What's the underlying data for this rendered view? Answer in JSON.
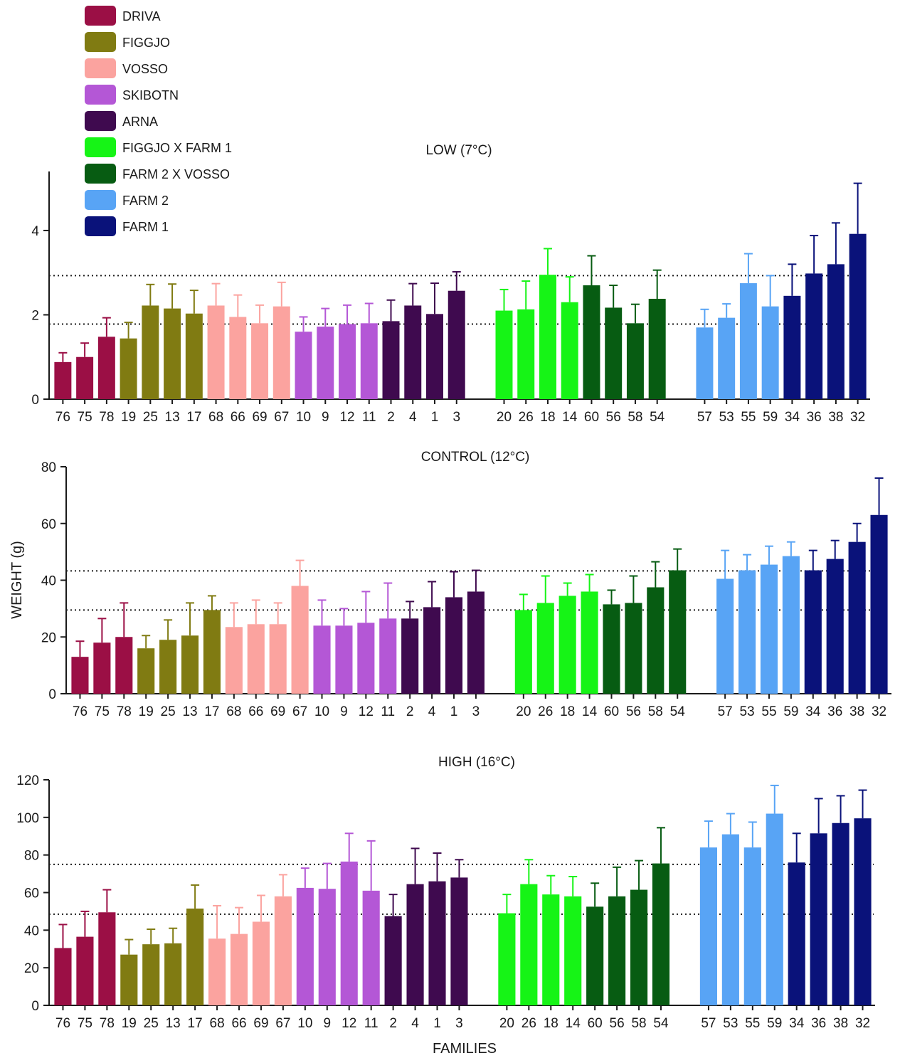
{
  "legend": [
    {
      "key": "driva",
      "label": "DRIVA",
      "color": "#9b0f45"
    },
    {
      "key": "figgjo",
      "label": "FIGGJO",
      "color": "#807b12"
    },
    {
      "key": "vosso",
      "label": "VOSSO",
      "color": "#fba39f"
    },
    {
      "key": "skibotn",
      "label": "SKIBOTN",
      "color": "#b457d6"
    },
    {
      "key": "arna",
      "label": "ARNA",
      "color": "#3f0a4f"
    },
    {
      "key": "figgjo_farm1",
      "label": "FIGGJO X FARM 1",
      "color": "#16f416"
    },
    {
      "key": "farm2_vosso",
      "label": "FARM 2 X VOSSO",
      "color": "#075c12"
    },
    {
      "key": "farm2",
      "label": "FARM 2",
      "color": "#58a4f5"
    },
    {
      "key": "farm1",
      "label": "FARM 1",
      "color": "#0a127a"
    }
  ],
  "y_axis_title": "WEIGHT (g)",
  "x_axis_title": "FAMILIES",
  "chart_data": [
    {
      "type": "bar",
      "title": "LOW (7°C)",
      "ylim": [
        0,
        5.4
      ],
      "yticks": [
        0,
        2,
        4
      ],
      "reference_lines": [
        1.78,
        2.93
      ],
      "categories": [
        "76",
        "75",
        "78",
        "19",
        "25",
        "13",
        "17",
        "68",
        "66",
        "69",
        "67",
        "10",
        "9",
        "12",
        "11",
        "2",
        "4",
        "1",
        "3",
        "20",
        "26",
        "18",
        "14",
        "60",
        "56",
        "58",
        "54",
        "57",
        "53",
        "55",
        "59",
        "34",
        "36",
        "38",
        "32"
      ],
      "groups": [
        "DRIVA",
        "DRIVA",
        "DRIVA",
        "FIGGJO",
        "FIGGJO",
        "FIGGJO",
        "FIGGJO",
        "VOSSO",
        "VOSSO",
        "VOSSO",
        "VOSSO",
        "SKIBOTN",
        "SKIBOTN",
        "SKIBOTN",
        "SKIBOTN",
        "ARNA",
        "ARNA",
        "ARNA",
        "ARNA",
        "FIGGJO X FARM 1",
        "FIGGJO X FARM 1",
        "FIGGJO X FARM 1",
        "FIGGJO X FARM 1",
        "FARM 2 X VOSSO",
        "FARM 2 X VOSSO",
        "FARM 2 X VOSSO",
        "FARM 2 X VOSSO",
        "FARM 2",
        "FARM 2",
        "FARM 2",
        "FARM 2",
        "FARM 1",
        "FARM 1",
        "FARM 1",
        "FARM 1"
      ],
      "values": [
        0.88,
        1.0,
        1.48,
        1.44,
        2.22,
        2.15,
        2.03,
        2.22,
        1.95,
        1.8,
        2.2,
        1.6,
        1.72,
        1.78,
        1.8,
        1.85,
        2.22,
        2.02,
        2.57,
        2.1,
        2.13,
        2.95,
        2.3,
        2.7,
        2.17,
        1.8,
        2.38,
        1.7,
        1.93,
        2.75,
        2.2,
        2.45,
        2.98,
        3.2,
        3.92
      ],
      "errors": [
        0.22,
        0.33,
        0.45,
        0.38,
        0.5,
        0.58,
        0.55,
        0.52,
        0.52,
        0.43,
        0.57,
        0.35,
        0.43,
        0.45,
        0.47,
        0.5,
        0.52,
        0.73,
        0.45,
        0.5,
        0.67,
        0.62,
        0.6,
        0.7,
        0.53,
        0.45,
        0.68,
        0.43,
        0.33,
        0.7,
        0.73,
        0.75,
        0.9,
        0.98,
        1.2
      ]
    },
    {
      "type": "bar",
      "title": "CONTROL (12°C)",
      "ylim": [
        0,
        80
      ],
      "yticks": [
        0,
        20,
        40,
        60,
        80
      ],
      "reference_lines": [
        29.5,
        43.3
      ],
      "categories": [
        "76",
        "75",
        "78",
        "19",
        "25",
        "13",
        "17",
        "68",
        "66",
        "69",
        "67",
        "10",
        "9",
        "12",
        "11",
        "2",
        "4",
        "1",
        "3",
        "20",
        "26",
        "18",
        "14",
        "60",
        "56",
        "58",
        "54",
        "57",
        "53",
        "55",
        "59",
        "34",
        "36",
        "38",
        "32"
      ],
      "groups": [
        "DRIVA",
        "DRIVA",
        "DRIVA",
        "FIGGJO",
        "FIGGJO",
        "FIGGJO",
        "FIGGJO",
        "VOSSO",
        "VOSSO",
        "VOSSO",
        "VOSSO",
        "SKIBOTN",
        "SKIBOTN",
        "SKIBOTN",
        "SKIBOTN",
        "ARNA",
        "ARNA",
        "ARNA",
        "ARNA",
        "FIGGJO X FARM 1",
        "FIGGJO X FARM 1",
        "FIGGJO X FARM 1",
        "FIGGJO X FARM 1",
        "FARM 2 X VOSSO",
        "FARM 2 X VOSSO",
        "FARM 2 X VOSSO",
        "FARM 2 X VOSSO",
        "FARM 2",
        "FARM 2",
        "FARM 2",
        "FARM 2",
        "FARM 1",
        "FARM 1",
        "FARM 1",
        "FARM 1"
      ],
      "values": [
        13,
        18,
        20,
        16,
        19,
        20.5,
        29.5,
        23.5,
        24.5,
        24.5,
        38,
        24,
        24,
        25,
        26.5,
        26.5,
        30.5,
        34,
        36,
        29.5,
        32,
        34.5,
        36,
        31.5,
        32,
        37.5,
        43.5,
        40.5,
        43.5,
        45.5,
        48.5,
        43.5,
        47.5,
        53.5,
        63
      ],
      "errors": [
        5.5,
        8.5,
        12,
        4.5,
        7,
        11.5,
        5,
        8.5,
        8.5,
        7.5,
        9,
        9,
        6,
        11,
        12.5,
        6,
        9,
        9,
        7.5,
        5.5,
        9.5,
        4.5,
        6,
        5,
        9.5,
        9,
        7.5,
        10,
        5.5,
        6.5,
        5,
        7,
        6.5,
        6.5,
        13
      ]
    },
    {
      "type": "bar",
      "title": "HIGH (16°C)",
      "ylim": [
        0,
        120
      ],
      "yticks": [
        0,
        20,
        40,
        60,
        80,
        100,
        120
      ],
      "reference_lines": [
        48.5,
        75
      ],
      "categories": [
        "76",
        "75",
        "78",
        "19",
        "25",
        "13",
        "17",
        "68",
        "66",
        "69",
        "67",
        "10",
        "9",
        "12",
        "11",
        "2",
        "4",
        "1",
        "3",
        "20",
        "26",
        "18",
        "14",
        "60",
        "56",
        "58",
        "54",
        "57",
        "53",
        "55",
        "59",
        "34",
        "36",
        "38",
        "32"
      ],
      "groups": [
        "DRIVA",
        "DRIVA",
        "DRIVA",
        "FIGGJO",
        "FIGGJO",
        "FIGGJO",
        "FIGGJO",
        "VOSSO",
        "VOSSO",
        "VOSSO",
        "VOSSO",
        "SKIBOTN",
        "SKIBOTN",
        "SKIBOTN",
        "SKIBOTN",
        "ARNA",
        "ARNA",
        "ARNA",
        "ARNA",
        "FIGGJO X FARM 1",
        "FIGGJO X FARM 1",
        "FIGGJO X FARM 1",
        "FIGGJO X FARM 1",
        "FARM 2 X VOSSO",
        "FARM 2 X VOSSO",
        "FARM 2 X VOSSO",
        "FARM 2 X VOSSO",
        "FARM 2",
        "FARM 2",
        "FARM 2",
        "FARM 2",
        "FARM 1",
        "FARM 1",
        "FARM 1",
        "FARM 1"
      ],
      "values": [
        30.5,
        36.5,
        49.5,
        27,
        32.5,
        33,
        51.5,
        35.5,
        38,
        44.5,
        58,
        62.5,
        62,
        76.5,
        61,
        47.5,
        64.5,
        66,
        68,
        49,
        64.5,
        59,
        58,
        52.5,
        58,
        61.5,
        75.5,
        84,
        91,
        84,
        102,
        76,
        91.5,
        97,
        99.5
      ],
      "errors": [
        12.5,
        13.5,
        12,
        8,
        8,
        8,
        12.5,
        17.5,
        14,
        14,
        11.5,
        10.5,
        13.5,
        15,
        26.5,
        11.5,
        19,
        15,
        9.5,
        10,
        13,
        10,
        10.5,
        12.5,
        15.5,
        15.5,
        19,
        14,
        11,
        13.5,
        15,
        15.5,
        18.5,
        14.5,
        15
      ]
    }
  ]
}
